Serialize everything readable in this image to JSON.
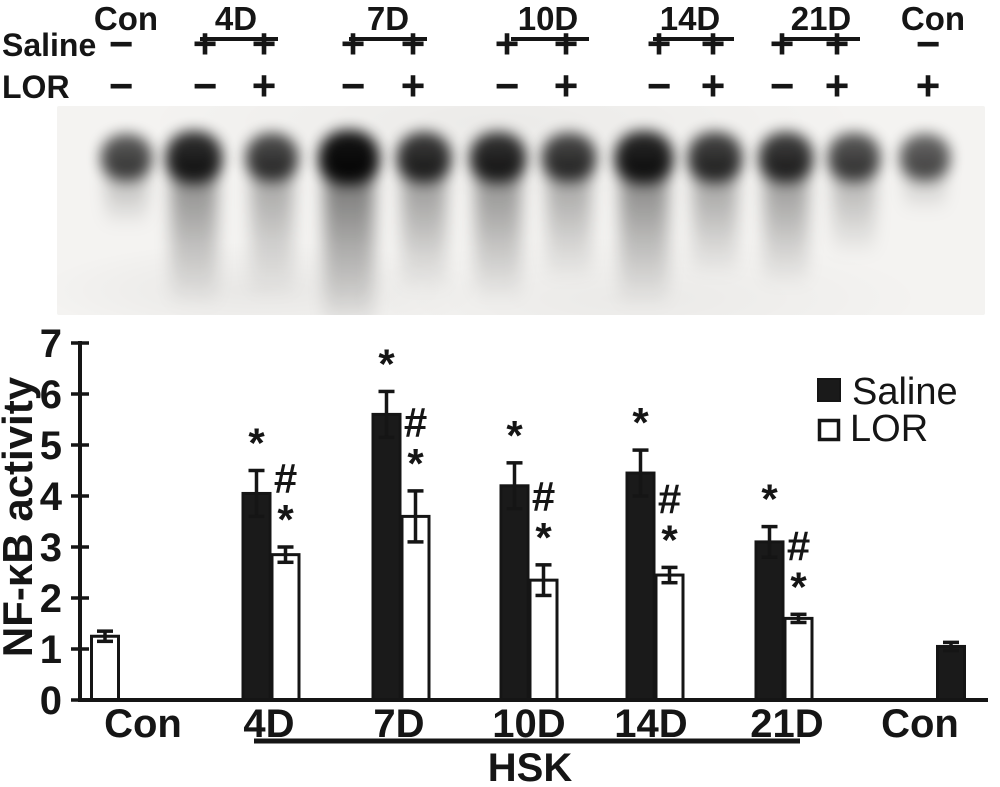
{
  "figure": {
    "ink_color": "#151515",
    "background": "#ffffff",
    "accent_black": "#1a1a1a"
  },
  "header": {
    "saline_row_label": "Saline",
    "lor_row_label": "LOR",
    "groups": [
      {
        "label": "Con",
        "underlined": false
      },
      {
        "label": "4D",
        "underlined": true
      },
      {
        "label": "7D",
        "underlined": true
      },
      {
        "label": "10D",
        "underlined": true
      },
      {
        "label": "14D",
        "underlined": true
      },
      {
        "label": "21D",
        "underlined": true
      },
      {
        "label": "Con",
        "underlined": false
      }
    ],
    "lanes": [
      {
        "saline": "−",
        "lor": "−"
      },
      {
        "saline": "+",
        "lor": "−"
      },
      {
        "saline": "+",
        "lor": "+"
      },
      {
        "saline": "+",
        "lor": "−"
      },
      {
        "saline": "+",
        "lor": "+"
      },
      {
        "saline": "+",
        "lor": "−"
      },
      {
        "saline": "+",
        "lor": "+"
      },
      {
        "saline": "+",
        "lor": "−"
      },
      {
        "saline": "+",
        "lor": "+"
      },
      {
        "saline": "+",
        "lor": "−"
      },
      {
        "saline": "+",
        "lor": "+"
      },
      {
        "saline": "−",
        "lor": "+"
      }
    ]
  },
  "blot": {
    "lanes": [
      {
        "lane": "Con",
        "density": 0.55,
        "smear": 70
      },
      {
        "lane": "4D Saline",
        "density": 0.82,
        "smear": 150
      },
      {
        "lane": "4D LOR",
        "density": 0.63,
        "smear": 140
      },
      {
        "lane": "7D Saline",
        "density": 0.97,
        "smear": 175
      },
      {
        "lane": "7D LOR",
        "density": 0.74,
        "smear": 135
      },
      {
        "lane": "10D Saline",
        "density": 0.78,
        "smear": 145
      },
      {
        "lane": "10D LOR",
        "density": 0.66,
        "smear": 125
      },
      {
        "lane": "14D Saline",
        "density": 0.86,
        "smear": 150
      },
      {
        "lane": "14D LOR",
        "density": 0.69,
        "smear": 120
      },
      {
        "lane": "21D Saline",
        "density": 0.73,
        "smear": 130
      },
      {
        "lane": "21D LOR",
        "density": 0.57,
        "smear": 100
      },
      {
        "lane": "Con",
        "density": 0.47,
        "smear": 55
      }
    ]
  },
  "chart_data": {
    "type": "bar",
    "categories": [
      "Con",
      "4D",
      "7D",
      "10D",
      "14D",
      "21D",
      "Con"
    ],
    "series": [
      {
        "name": "Saline",
        "fill": "#1a1a1a",
        "values": [
          null,
          4.05,
          5.6,
          4.2,
          4.45,
          3.1,
          1.05
        ],
        "errors": [
          null,
          0.45,
          0.45,
          0.45,
          0.45,
          0.3,
          0.08
        ],
        "sig_marks": [
          null,
          "*",
          "*",
          "*",
          "*",
          "*",
          null
        ]
      },
      {
        "name": "LOR",
        "fill": "#ffffff",
        "values": [
          1.25,
          2.85,
          3.6,
          2.35,
          2.45,
          1.6,
          null
        ],
        "errors": [
          0.1,
          0.15,
          0.5,
          0.3,
          0.15,
          0.08,
          null
        ],
        "sig_marks": [
          null,
          "#*",
          "#*",
          "#*",
          "#*",
          "#*",
          null
        ]
      }
    ],
    "ylabel": "NF-κB activity",
    "ylim": [
      0,
      7
    ],
    "yticks": [
      0,
      1,
      2,
      3,
      4,
      5,
      6,
      7
    ],
    "grid": false,
    "legend_position": "top-right",
    "hsk_bracket": {
      "label": "HSK",
      "spans": [
        "4D",
        "21D"
      ]
    }
  }
}
